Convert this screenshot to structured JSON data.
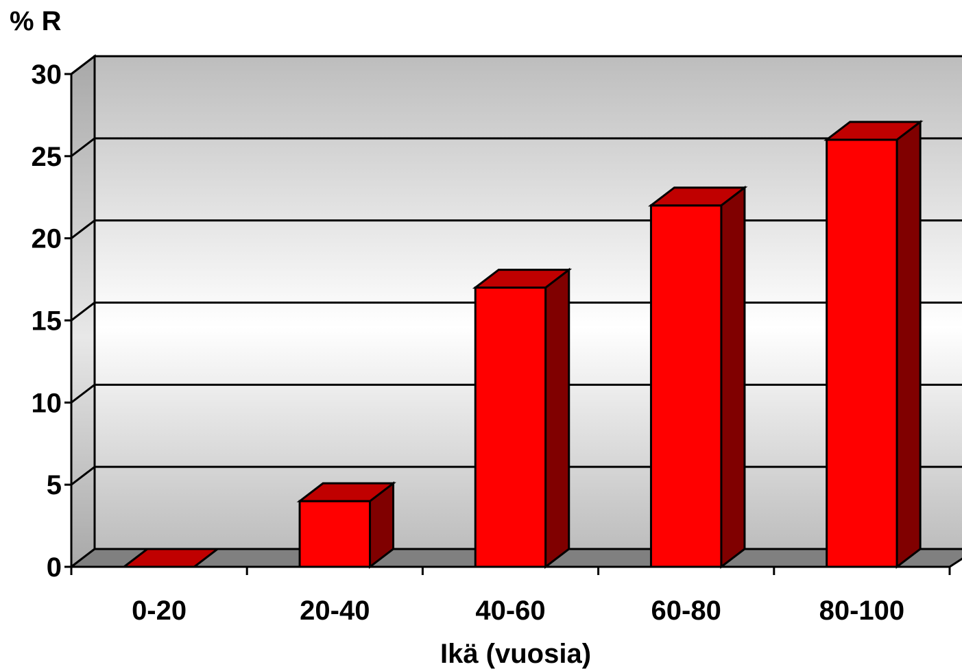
{
  "chart_data": {
    "type": "bar",
    "ylabel": "% R",
    "xlabel": "Ikä (vuosia)",
    "categories": [
      "0-20",
      "20-40",
      "40-60",
      "60-80",
      "80-100"
    ],
    "values": [
      0,
      4,
      17,
      22,
      26
    ],
    "ylim": [
      0,
      30
    ],
    "yticks": [
      0,
      5,
      10,
      15,
      20,
      25,
      30
    ],
    "grid": true,
    "legend": "none",
    "three_d": true,
    "colors": {
      "bar_front": "#ff0000",
      "bar_top": "#c00000",
      "bar_side": "#800000",
      "floor": "#808080",
      "wall_top": "#bdbdbd",
      "wall_mid": "#ffffff",
      "outline": "#000000"
    }
  }
}
